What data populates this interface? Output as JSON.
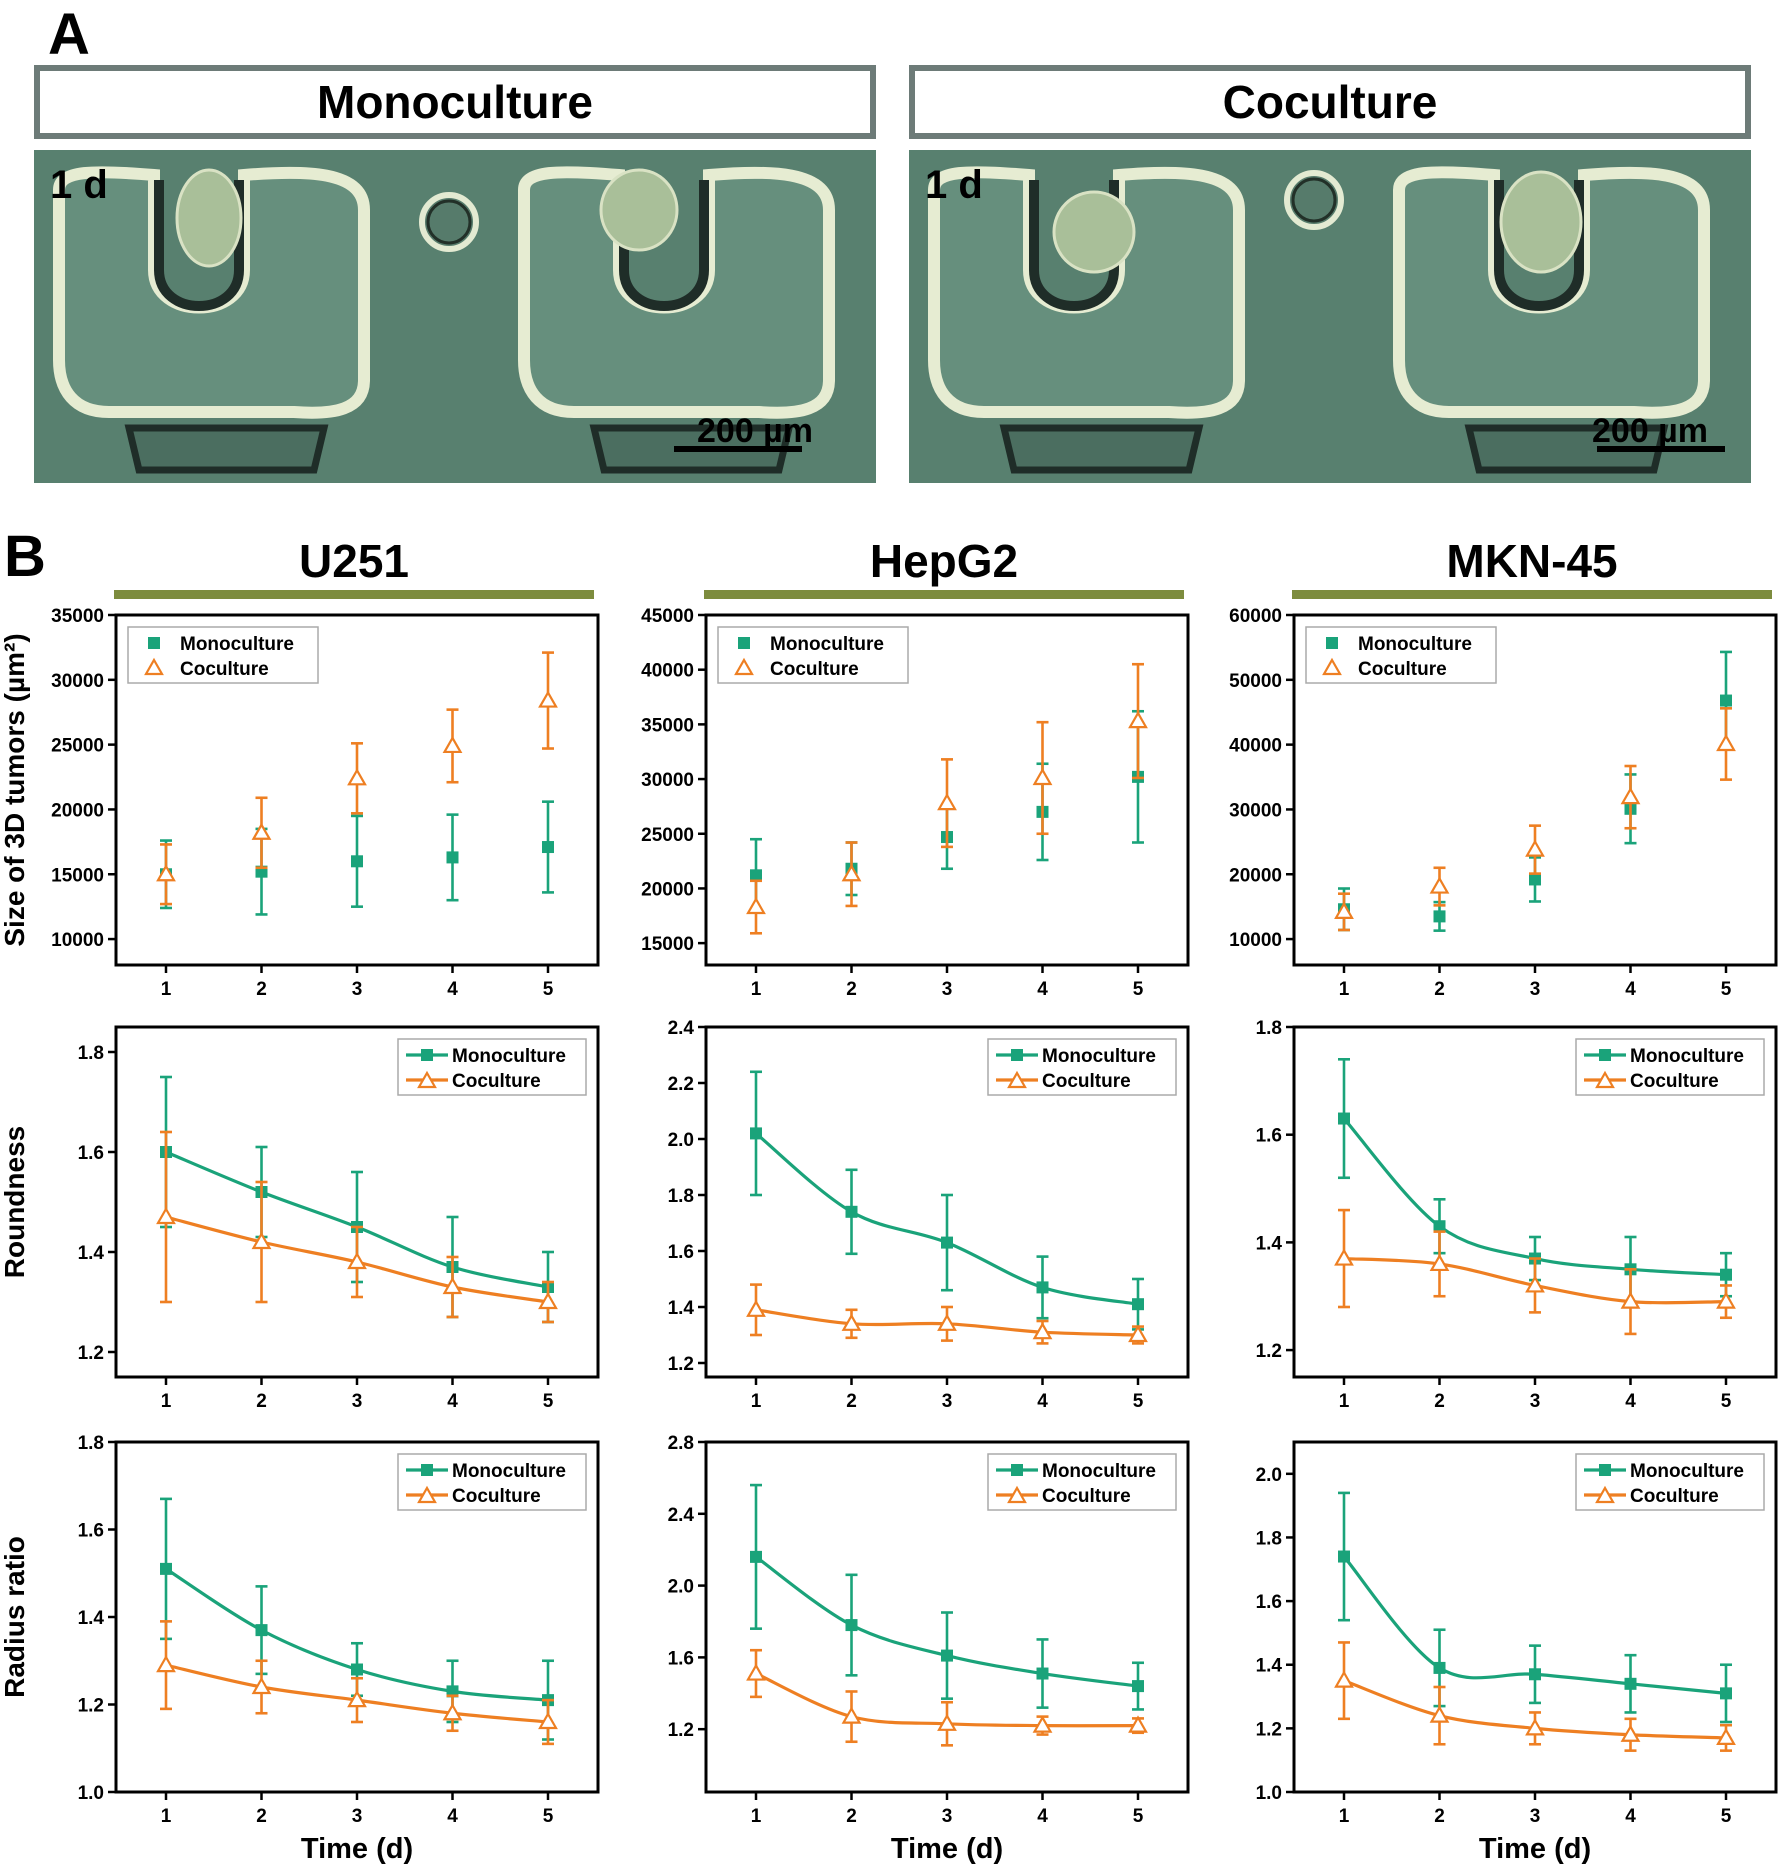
{
  "panelA": {
    "letter": "A",
    "images": [
      {
        "header": "Monoculture",
        "day_label": "1 d",
        "scale_label": "200 µm"
      },
      {
        "header": "Coculture",
        "day_label": "1 d",
        "scale_label": "200 µm"
      }
    ]
  },
  "panelB": {
    "letter": "B",
    "columns": [
      "U251",
      "HepG2",
      "MKN-45"
    ],
    "xlabel": "Time (d)"
  },
  "colors": {
    "monoculture": "#1aa37a",
    "coculture": "#ee7f22",
    "olive": "#7d8c3e",
    "header_border": "#6d7b78"
  },
  "chart_data": [
    {
      "id": "size-u251",
      "type": "scatter",
      "row": 0,
      "col": 0,
      "ylabel": "Size of 3D tumors (µm²)",
      "categories": [
        1,
        2,
        3,
        4,
        5
      ],
      "ylim": [
        8000,
        35000
      ],
      "yticks": [
        10000,
        15000,
        20000,
        25000,
        30000,
        35000
      ],
      "series": [
        {
          "name": "Monoculture",
          "values": [
            15000,
            15200,
            16000,
            16300,
            17100
          ],
          "err": [
            2600,
            3300,
            3500,
            3300,
            3500
          ]
        },
        {
          "name": "Coculture",
          "values": [
            15000,
            18200,
            22400,
            24900,
            28400
          ],
          "err": [
            2300,
            2700,
            2700,
            2800,
            3700
          ]
        }
      ]
    },
    {
      "id": "size-hepg2",
      "type": "scatter",
      "row": 0,
      "col": 1,
      "ylabel": "",
      "categories": [
        1,
        2,
        3,
        4,
        5
      ],
      "ylim": [
        13000,
        45000
      ],
      "yticks": [
        15000,
        20000,
        25000,
        30000,
        35000,
        40000,
        45000
      ],
      "series": [
        {
          "name": "Monoculture",
          "values": [
            21200,
            21800,
            24700,
            27000,
            30200
          ],
          "err": [
            3300,
            2400,
            2900,
            4400,
            6000
          ]
        },
        {
          "name": "Coculture",
          "values": [
            18300,
            21300,
            27800,
            30100,
            35300
          ],
          "err": [
            2400,
            2900,
            4000,
            5100,
            5200
          ]
        }
      ]
    },
    {
      "id": "size-mkn45",
      "type": "scatter",
      "row": 0,
      "col": 2,
      "ylabel": "",
      "categories": [
        1,
        2,
        3,
        4,
        5
      ],
      "ylim": [
        6000,
        60000
      ],
      "yticks": [
        10000,
        20000,
        30000,
        40000,
        50000,
        60000
      ],
      "series": [
        {
          "name": "Monoculture",
          "values": [
            14600,
            13500,
            19200,
            30100,
            46800
          ],
          "err": [
            3200,
            2200,
            3400,
            5300,
            7500
          ]
        },
        {
          "name": "Coculture",
          "values": [
            14200,
            18100,
            23800,
            31900,
            40100
          ],
          "err": [
            2800,
            2900,
            3700,
            4800,
            5500
          ]
        }
      ]
    },
    {
      "id": "roundness-u251",
      "type": "line",
      "row": 1,
      "col": 0,
      "ylabel": "Roundness",
      "categories": [
        1,
        2,
        3,
        4,
        5
      ],
      "ylim": [
        1.15,
        1.85
      ],
      "yticks": [
        1.2,
        1.4,
        1.6,
        1.8
      ],
      "series": [
        {
          "name": "Monoculture",
          "values": [
            1.6,
            1.52,
            1.45,
            1.37,
            1.33
          ],
          "err": [
            0.15,
            0.09,
            0.11,
            0.1,
            0.07
          ]
        },
        {
          "name": "Coculture",
          "values": [
            1.47,
            1.42,
            1.38,
            1.33,
            1.3
          ],
          "err": [
            0.17,
            0.12,
            0.07,
            0.06,
            0.04
          ]
        }
      ]
    },
    {
      "id": "roundness-hepg2",
      "type": "line",
      "row": 1,
      "col": 1,
      "ylabel": "",
      "categories": [
        1,
        2,
        3,
        4,
        5
      ],
      "ylim": [
        1.15,
        2.4
      ],
      "yticks": [
        1.2,
        1.4,
        1.6,
        1.8,
        2.0,
        2.2,
        2.4
      ],
      "series": [
        {
          "name": "Monoculture",
          "values": [
            2.02,
            1.74,
            1.63,
            1.47,
            1.41
          ],
          "err": [
            0.22,
            0.15,
            0.17,
            0.11,
            0.09
          ]
        },
        {
          "name": "Coculture",
          "values": [
            1.39,
            1.34,
            1.34,
            1.31,
            1.3
          ],
          "err": [
            0.09,
            0.05,
            0.06,
            0.04,
            0.03
          ]
        }
      ]
    },
    {
      "id": "roundness-mkn45",
      "type": "line",
      "row": 1,
      "col": 2,
      "ylabel": "",
      "categories": [
        1,
        2,
        3,
        4,
        5
      ],
      "ylim": [
        1.15,
        1.8
      ],
      "yticks": [
        1.2,
        1.4,
        1.6,
        1.8
      ],
      "series": [
        {
          "name": "Monoculture",
          "values": [
            1.63,
            1.43,
            1.37,
            1.35,
            1.34
          ],
          "err": [
            0.11,
            0.05,
            0.04,
            0.06,
            0.04
          ]
        },
        {
          "name": "Coculture",
          "values": [
            1.37,
            1.36,
            1.32,
            1.29,
            1.29
          ],
          "err": [
            0.09,
            0.06,
            0.05,
            0.06,
            0.03
          ]
        }
      ]
    },
    {
      "id": "radius-u251",
      "type": "line",
      "row": 2,
      "col": 0,
      "ylabel": "Radius ratio",
      "categories": [
        1,
        2,
        3,
        4,
        5
      ],
      "ylim": [
        1.0,
        1.8
      ],
      "yticks": [
        1.0,
        1.2,
        1.4,
        1.6,
        1.8
      ],
      "series": [
        {
          "name": "Monoculture",
          "values": [
            1.51,
            1.37,
            1.28,
            1.23,
            1.21
          ],
          "err": [
            0.16,
            0.1,
            0.06,
            0.07,
            0.09
          ]
        },
        {
          "name": "Coculture",
          "values": [
            1.29,
            1.24,
            1.21,
            1.18,
            1.16
          ],
          "err": [
            0.1,
            0.06,
            0.05,
            0.04,
            0.05
          ]
        }
      ]
    },
    {
      "id": "radius-hepg2",
      "type": "line",
      "row": 2,
      "col": 1,
      "ylabel": "",
      "categories": [
        1,
        2,
        3,
        4,
        5
      ],
      "ylim": [
        0.85,
        2.8
      ],
      "yticks": [
        1.2,
        1.6,
        2.0,
        2.4,
        2.8
      ],
      "series": [
        {
          "name": "Monoculture",
          "values": [
            2.16,
            1.78,
            1.61,
            1.51,
            1.44
          ],
          "err": [
            0.4,
            0.28,
            0.24,
            0.19,
            0.13
          ]
        },
        {
          "name": "Coculture",
          "values": [
            1.51,
            1.27,
            1.23,
            1.22,
            1.22
          ],
          "err": [
            0.13,
            0.14,
            0.12,
            0.05,
            0.04
          ]
        }
      ]
    },
    {
      "id": "radius-mkn45",
      "type": "line",
      "row": 2,
      "col": 2,
      "ylabel": "",
      "categories": [
        1,
        2,
        3,
        4,
        5
      ],
      "ylim": [
        1.0,
        2.1
      ],
      "yticks": [
        1.0,
        1.2,
        1.4,
        1.6,
        1.8,
        2.0
      ],
      "series": [
        {
          "name": "Monoculture",
          "values": [
            1.74,
            1.39,
            1.37,
            1.34,
            1.31
          ],
          "err": [
            0.2,
            0.12,
            0.09,
            0.09,
            0.09
          ]
        },
        {
          "name": "Coculture",
          "values": [
            1.35,
            1.24,
            1.2,
            1.18,
            1.17
          ],
          "err": [
            0.12,
            0.09,
            0.05,
            0.05,
            0.04
          ]
        }
      ]
    }
  ]
}
